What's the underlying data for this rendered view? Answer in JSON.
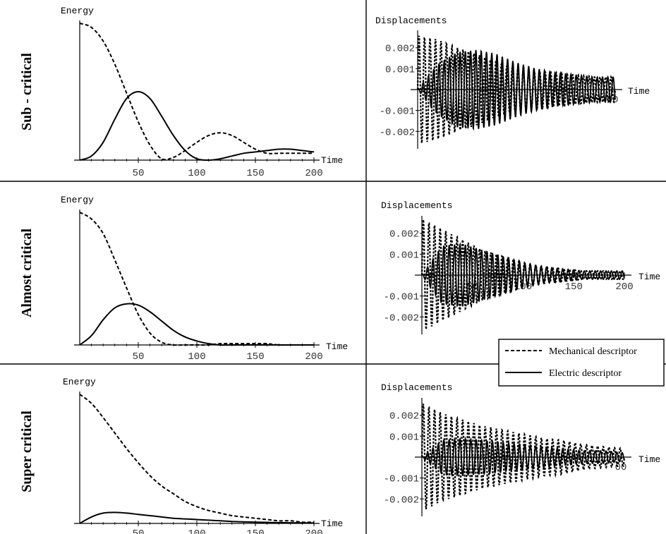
{
  "chart_data": [
    {
      "type": "line",
      "row_label": "Sub - critical",
      "ylabel": "Energy",
      "xlabel": "Time",
      "xlim": [
        0,
        200
      ],
      "ylim": [
        0,
        1
      ],
      "xticks": [
        "50",
        "100",
        "150",
        "200"
      ],
      "series": [
        {
          "style": "dashed",
          "x": [
            0,
            10,
            20,
            30,
            40,
            50,
            60,
            70,
            80,
            90,
            100,
            110,
            120,
            130,
            140,
            150,
            160,
            170,
            180,
            190,
            200
          ],
          "values": [
            1.0,
            0.97,
            0.87,
            0.7,
            0.49,
            0.28,
            0.11,
            0.01,
            0.02,
            0.07,
            0.13,
            0.18,
            0.2,
            0.18,
            0.13,
            0.08,
            0.05,
            0.05,
            0.05,
            0.05,
            0.05
          ]
        },
        {
          "style": "solid",
          "x": [
            0,
            10,
            20,
            30,
            40,
            50,
            60,
            70,
            80,
            90,
            100,
            110,
            120,
            130,
            140,
            150,
            160,
            170,
            180,
            190,
            200
          ],
          "values": [
            0.0,
            0.03,
            0.13,
            0.3,
            0.45,
            0.5,
            0.45,
            0.32,
            0.18,
            0.07,
            0.01,
            0.0,
            0.01,
            0.03,
            0.05,
            0.06,
            0.07,
            0.08,
            0.08,
            0.07,
            0.06
          ]
        }
      ]
    },
    {
      "type": "line",
      "row_label": "Sub - critical",
      "ylabel": "Displacements",
      "xlabel": "Time",
      "xlim": [
        0,
        200
      ],
      "ylim": [
        -0.0027,
        0.0027
      ],
      "xticks": [
        "00"
      ],
      "yticks": [
        "0.002",
        "0.001",
        "-0.001",
        "-0.002"
      ],
      "series": [
        {
          "style": "dashed",
          "x": [
            0,
            20,
            40,
            60,
            80,
            100,
            120,
            140,
            160,
            180,
            200
          ],
          "amplitude": [
            0.0026,
            0.0024,
            0.002,
            0.0017,
            0.0013,
            0.001,
            0.0009,
            0.0008,
            0.0007,
            0.0006,
            0.0006
          ]
        },
        {
          "style": "solid",
          "x": [
            0,
            20,
            40,
            60,
            80,
            100,
            120,
            140,
            160,
            180,
            200
          ],
          "amplitude": [
            0.0,
            0.0012,
            0.0018,
            0.0019,
            0.0017,
            0.0013,
            0.001,
            0.0008,
            0.0007,
            0.0006,
            0.0006
          ]
        }
      ]
    },
    {
      "type": "line",
      "row_label": "Almost critical",
      "ylabel": "Energy",
      "xlabel": "Time",
      "xlim": [
        0,
        200
      ],
      "ylim": [
        0,
        1
      ],
      "xticks": [
        "50",
        "100",
        "150",
        "200"
      ],
      "series": [
        {
          "style": "dashed",
          "x": [
            0,
            10,
            20,
            30,
            40,
            50,
            60,
            70,
            80,
            90,
            100,
            110,
            120,
            130,
            140,
            150,
            160,
            170,
            180,
            190,
            200
          ],
          "values": [
            1.0,
            0.95,
            0.84,
            0.64,
            0.43,
            0.23,
            0.09,
            0.02,
            0.0,
            0.0,
            0.0,
            0.0,
            0.01,
            0.01,
            0.01,
            0.01,
            0.01,
            0.0,
            0.0,
            0.0,
            0.0
          ]
        },
        {
          "style": "solid",
          "x": [
            0,
            10,
            20,
            30,
            40,
            50,
            60,
            70,
            80,
            90,
            100,
            110,
            120,
            130,
            140,
            150,
            160,
            170,
            180,
            190,
            200
          ],
          "values": [
            0.0,
            0.07,
            0.19,
            0.28,
            0.31,
            0.3,
            0.25,
            0.18,
            0.11,
            0.06,
            0.03,
            0.01,
            0.0,
            0.0,
            0.0,
            0.0,
            0.0,
            0.0,
            0.0,
            0.0,
            0.0
          ]
        }
      ]
    },
    {
      "type": "line",
      "row_label": "Almost critical",
      "ylabel": "Displacements",
      "xlabel": "Time",
      "xlim": [
        0,
        200
      ],
      "ylim": [
        -0.0027,
        0.0027
      ],
      "xticks": [
        "50",
        "100",
        "150",
        "200"
      ],
      "yticks": [
        "0.002",
        "0.001",
        "-0.001",
        "-0.002"
      ],
      "series": [
        {
          "style": "dashed",
          "x": [
            0,
            20,
            40,
            60,
            80,
            100,
            120,
            140,
            160,
            180,
            200
          ],
          "amplitude": [
            0.0027,
            0.0022,
            0.0017,
            0.0012,
            0.0009,
            0.0006,
            0.0004,
            0.0003,
            0.0002,
            0.0002,
            0.0002
          ]
        },
        {
          "style": "solid",
          "x": [
            0,
            20,
            40,
            60,
            80,
            100,
            120,
            140,
            160,
            180,
            200
          ],
          "amplitude": [
            0.0,
            0.0014,
            0.0015,
            0.0012,
            0.0009,
            0.0006,
            0.0004,
            0.0003,
            0.0002,
            0.0002,
            0.0002
          ]
        }
      ]
    },
    {
      "type": "line",
      "row_label": "Super critical",
      "ylabel": "Energy",
      "xlabel": "Time",
      "xlim": [
        0,
        200
      ],
      "ylim": [
        0,
        1
      ],
      "xticks": [
        "50",
        "100",
        "150",
        "200"
      ],
      "series": [
        {
          "style": "dashed",
          "x": [
            0,
            10,
            20,
            30,
            40,
            50,
            60,
            70,
            80,
            90,
            100,
            110,
            120,
            130,
            140,
            150,
            160,
            170,
            180,
            190,
            200
          ],
          "values": [
            1.0,
            0.93,
            0.82,
            0.7,
            0.58,
            0.47,
            0.37,
            0.29,
            0.23,
            0.17,
            0.13,
            0.1,
            0.08,
            0.06,
            0.05,
            0.04,
            0.03,
            0.02,
            0.02,
            0.01,
            0.01
          ]
        },
        {
          "style": "solid",
          "x": [
            0,
            10,
            20,
            30,
            40,
            50,
            60,
            70,
            80,
            90,
            100,
            110,
            120,
            130,
            140,
            150,
            160,
            170,
            180,
            190,
            200
          ],
          "values": [
            0.0,
            0.05,
            0.08,
            0.085,
            0.08,
            0.07,
            0.06,
            0.05,
            0.04,
            0.035,
            0.03,
            0.025,
            0.02,
            0.015,
            0.012,
            0.01,
            0.008,
            0.006,
            0.005,
            0.004,
            0.003
          ]
        }
      ]
    },
    {
      "type": "line",
      "row_label": "Super critical",
      "ylabel": "Displacements",
      "xlabel": "Time",
      "xlim": [
        0,
        200
      ],
      "ylim": [
        -0.0027,
        0.0027
      ],
      "xticks": [
        "00"
      ],
      "yticks": [
        "0.002",
        "0.001",
        "-0.001",
        "-0.002"
      ],
      "series": [
        {
          "style": "dashed",
          "x": [
            0,
            20,
            40,
            60,
            80,
            100,
            120,
            140,
            160,
            180,
            200
          ],
          "amplitude": [
            0.0026,
            0.0021,
            0.0018,
            0.0015,
            0.0013,
            0.0011,
            0.0009,
            0.0008,
            0.0006,
            0.0005,
            0.0004
          ]
        },
        {
          "style": "solid",
          "x": [
            0,
            20,
            40,
            60,
            80,
            100,
            120,
            140,
            160,
            180,
            200
          ],
          "amplitude": [
            0.0,
            0.0008,
            0.0009,
            0.0008,
            0.0007,
            0.0006,
            0.0005,
            0.0004,
            0.0003,
            0.0003,
            0.0002
          ]
        }
      ]
    }
  ],
  "legend": {
    "mechanical": "Mechanical descriptor",
    "electric": "Electric descriptor"
  }
}
